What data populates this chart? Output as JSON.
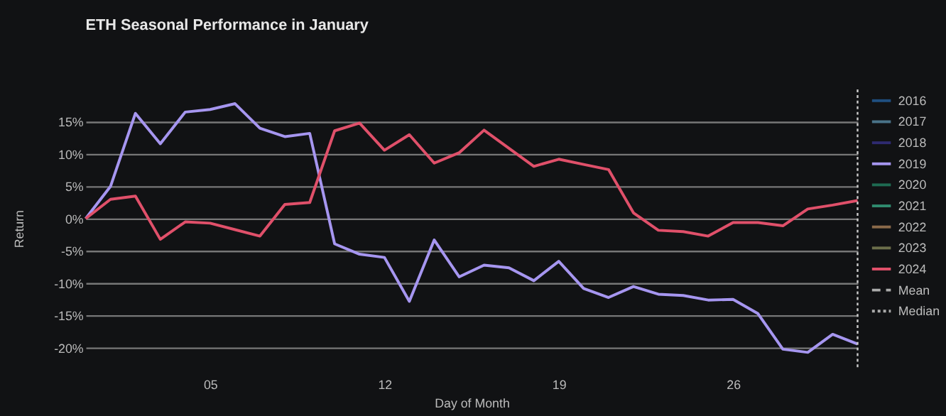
{
  "chart_data": {
    "type": "line",
    "title": "ETH Seasonal Performance in January",
    "xlabel": "Day of Month",
    "ylabel": "Return",
    "x": [
      0,
      1,
      2,
      3,
      4,
      5,
      6,
      7,
      8,
      9,
      10,
      11,
      12,
      13,
      14,
      15,
      16,
      17,
      18,
      19,
      20,
      21,
      22,
      23,
      24,
      25,
      26,
      27,
      28,
      29,
      30,
      31
    ],
    "xlim": [
      0,
      31
    ],
    "xticks": [
      {
        "value": 5,
        "label": "05"
      },
      {
        "value": 12,
        "label": "12"
      },
      {
        "value": 19,
        "label": "19"
      },
      {
        "value": 26,
        "label": "26"
      }
    ],
    "ylim": [
      -23,
      20
    ],
    "yticks": [
      {
        "value": -20,
        "label": "-20%"
      },
      {
        "value": -15,
        "label": "-15%"
      },
      {
        "value": -10,
        "label": "-10%"
      },
      {
        "value": -5,
        "label": "-5%"
      },
      {
        "value": 0,
        "label": "0%"
      },
      {
        "value": 5,
        "label": "5%"
      },
      {
        "value": 10,
        "label": "10%"
      },
      {
        "value": 15,
        "label": "15%"
      }
    ],
    "grid": "y",
    "legend": "right",
    "marker": "none",
    "ref_lines": [
      {
        "axis": "x",
        "value": 31,
        "label": null,
        "color": "#cccccc",
        "line_style": "dotted"
      }
    ],
    "series": [
      {
        "name": "2016",
        "color": "#1f4f80",
        "values": [
          null,
          null,
          null,
          null,
          null,
          null,
          null,
          null,
          null,
          null,
          null,
          null,
          null,
          null,
          null,
          null,
          null,
          null,
          null,
          null,
          null,
          null,
          null,
          null,
          null,
          null,
          null,
          null,
          null,
          null,
          null,
          null
        ]
      },
      {
        "name": "2017",
        "color": "#4a7388",
        "values": [
          null,
          null,
          null,
          null,
          null,
          null,
          null,
          null,
          null,
          null,
          null,
          null,
          null,
          null,
          null,
          null,
          null,
          null,
          null,
          null,
          null,
          null,
          null,
          null,
          null,
          null,
          null,
          null,
          null,
          null,
          null,
          null
        ]
      },
      {
        "name": "2018",
        "color": "#2e2a70",
        "values": [
          null,
          null,
          null,
          null,
          null,
          null,
          null,
          null,
          null,
          null,
          null,
          null,
          null,
          null,
          null,
          null,
          null,
          null,
          null,
          null,
          null,
          null,
          null,
          null,
          null,
          null,
          null,
          null,
          null,
          null,
          null,
          null
        ]
      },
      {
        "name": "2019",
        "color": "#a696f0",
        "values": [
          0,
          5.0,
          16.3,
          11.6,
          16.5,
          16.9,
          17.8,
          14.0,
          12.7,
          13.2,
          -3.9,
          -5.5,
          -6.0,
          -12.8,
          -3.3,
          -9.0,
          -7.2,
          -7.6,
          -9.6,
          -6.6,
          -10.8,
          -12.2,
          -10.5,
          -11.7,
          -11.9,
          -12.6,
          -12.5,
          -14.7,
          -20.2,
          -20.7,
          -17.9,
          -19.4
        ]
      },
      {
        "name": "2020",
        "color": "#1e6b52",
        "values": [
          null,
          null,
          null,
          null,
          null,
          null,
          null,
          null,
          null,
          null,
          null,
          null,
          null,
          null,
          null,
          null,
          null,
          null,
          null,
          null,
          null,
          null,
          null,
          null,
          null,
          null,
          null,
          null,
          null,
          null,
          null,
          null
        ]
      },
      {
        "name": "2021",
        "color": "#2f8a6e",
        "values": [
          null,
          null,
          null,
          null,
          null,
          null,
          null,
          null,
          null,
          null,
          null,
          null,
          null,
          null,
          null,
          null,
          null,
          null,
          null,
          null,
          null,
          null,
          null,
          null,
          null,
          null,
          null,
          null,
          null,
          null,
          null,
          null
        ]
      },
      {
        "name": "2022",
        "color": "#8a6a4a",
        "values": [
          null,
          null,
          null,
          null,
          null,
          null,
          null,
          null,
          null,
          null,
          null,
          null,
          null,
          null,
          null,
          null,
          null,
          null,
          null,
          null,
          null,
          null,
          null,
          null,
          null,
          null,
          null,
          null,
          null,
          null,
          null,
          null
        ]
      },
      {
        "name": "2023",
        "color": "#6b6e4a",
        "values": [
          null,
          null,
          null,
          null,
          null,
          null,
          null,
          null,
          null,
          null,
          null,
          null,
          null,
          null,
          null,
          null,
          null,
          null,
          null,
          null,
          null,
          null,
          null,
          null,
          null,
          null,
          null,
          null,
          null,
          null,
          null,
          null
        ]
      },
      {
        "name": "2024",
        "color": "#e0506a",
        "values": [
          0,
          3.0,
          3.5,
          -3.2,
          -0.5,
          -0.7,
          -1.7,
          -2.7,
          2.2,
          2.5,
          13.6,
          14.8,
          10.6,
          13.0,
          8.6,
          10.2,
          13.7,
          10.9,
          8.1,
          9.2,
          8.4,
          7.6,
          0.9,
          -1.8,
          -2.0,
          -2.7,
          -0.6,
          -0.6,
          -1.1,
          1.5,
          2.1,
          2.8
        ]
      },
      {
        "name": "Mean",
        "color": "#aaaaaa",
        "line_style": "dashed",
        "values": [
          null,
          null,
          null,
          null,
          null,
          null,
          null,
          null,
          null,
          null,
          null,
          null,
          null,
          null,
          null,
          null,
          null,
          null,
          null,
          null,
          null,
          null,
          null,
          null,
          null,
          null,
          null,
          null,
          null,
          null,
          null,
          null
        ]
      },
      {
        "name": "Median",
        "color": "#aaaaaa",
        "line_style": "dotted",
        "values": [
          null,
          null,
          null,
          null,
          null,
          null,
          null,
          null,
          null,
          null,
          null,
          null,
          null,
          null,
          null,
          null,
          null,
          null,
          null,
          null,
          null,
          null,
          null,
          null,
          null,
          null,
          null,
          null,
          null,
          null,
          null,
          null
        ]
      }
    ]
  }
}
